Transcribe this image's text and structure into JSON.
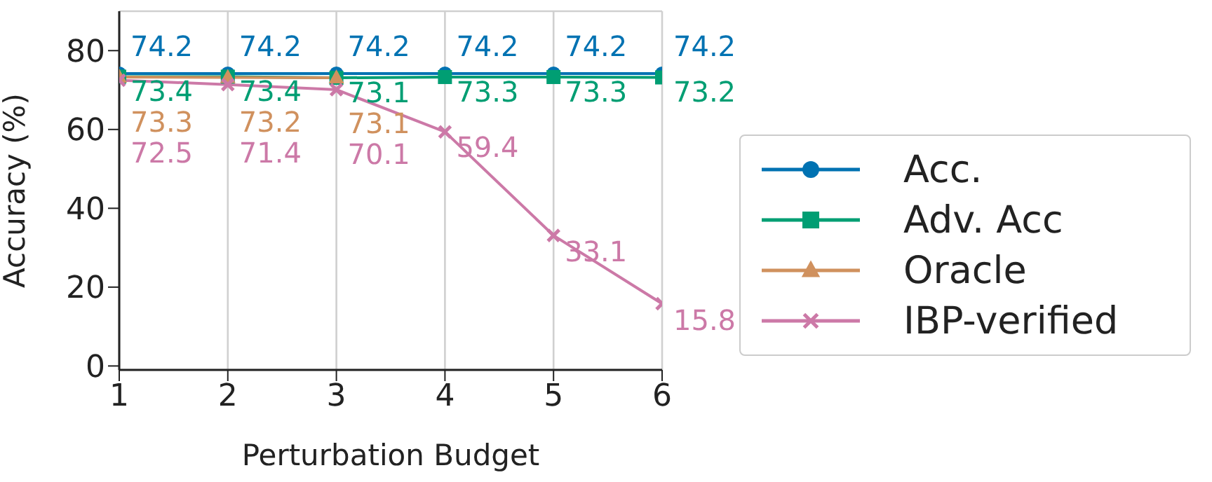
{
  "chart_data": {
    "type": "line",
    "xlabel": "Perturbation Budget",
    "ylabel": "Accuracy (%)",
    "x": [
      1,
      2,
      3,
      4,
      5,
      6
    ],
    "series": [
      {
        "name": "Acc.",
        "color": "#0072b2",
        "marker": "circle",
        "values": [
          74.2,
          74.2,
          74.2,
          74.2,
          74.2,
          74.2
        ]
      },
      {
        "name": "Adv. Acc",
        "color": "#009e73",
        "marker": "square",
        "values": [
          73.4,
          73.4,
          73.1,
          73.3,
          73.3,
          73.2
        ]
      },
      {
        "name": "Oracle",
        "color": "#d0915e",
        "marker": "triangle",
        "values": [
          73.3,
          73.2,
          73.1,
          null,
          null,
          null
        ]
      },
      {
        "name": "IBP-verified",
        "color": "#cc79a7",
        "marker": "cross",
        "values": [
          72.5,
          71.4,
          70.1,
          59.4,
          33.1,
          15.8
        ]
      }
    ],
    "xlim": [
      1,
      6
    ],
    "xticks": [
      1,
      2,
      3,
      4,
      5,
      6
    ],
    "ylim": [
      -1,
      90
    ],
    "yticks": [
      0,
      20,
      40,
      60,
      80
    ],
    "grid": true,
    "legend": "right",
    "data_labels": true
  }
}
